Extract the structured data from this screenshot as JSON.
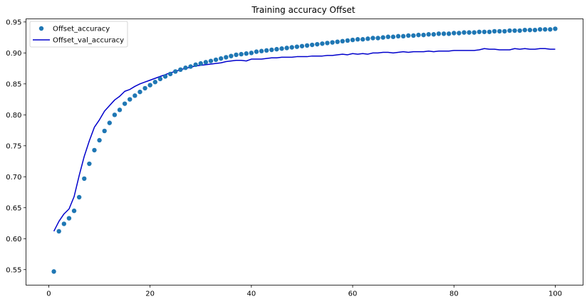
{
  "chart_data": {
    "type": "line",
    "title": "Training accuracy Offset",
    "xlabel": "",
    "ylabel": "",
    "xlim": [
      -4.5,
      105.5
    ],
    "ylim": [
      0.525,
      0.955
    ],
    "x_ticks": [
      0,
      20,
      40,
      60,
      80,
      100
    ],
    "x_tick_labels": [
      "0",
      "20",
      "40",
      "60",
      "80",
      "100"
    ],
    "y_ticks": [
      0.55,
      0.6,
      0.65,
      0.7,
      0.75,
      0.8,
      0.85,
      0.9,
      0.95
    ],
    "y_tick_labels": [
      "0.55",
      "0.60",
      "0.65",
      "0.70",
      "0.75",
      "0.80",
      "0.85",
      "0.90",
      "0.95"
    ],
    "grid": false,
    "legend_position": "top-left",
    "x": [
      1,
      2,
      3,
      4,
      5,
      6,
      7,
      8,
      9,
      10,
      11,
      12,
      13,
      14,
      15,
      16,
      17,
      18,
      19,
      20,
      21,
      22,
      23,
      24,
      25,
      26,
      27,
      28,
      29,
      30,
      31,
      32,
      33,
      34,
      35,
      36,
      37,
      38,
      39,
      40,
      41,
      42,
      43,
      44,
      45,
      46,
      47,
      48,
      49,
      50,
      51,
      52,
      53,
      54,
      55,
      56,
      57,
      58,
      59,
      60,
      61,
      62,
      63,
      64,
      65,
      66,
      67,
      68,
      69,
      70,
      71,
      72,
      73,
      74,
      75,
      76,
      77,
      78,
      79,
      80,
      81,
      82,
      83,
      84,
      85,
      86,
      87,
      88,
      89,
      90,
      91,
      92,
      93,
      94,
      95,
      96,
      97,
      98,
      99,
      100
    ],
    "series": [
      {
        "name": "Offset_accuracy",
        "style": "markers",
        "color": "#1f77b4",
        "values": [
          0.547,
          0.612,
          0.624,
          0.633,
          0.645,
          0.667,
          0.697,
          0.721,
          0.743,
          0.759,
          0.774,
          0.787,
          0.8,
          0.808,
          0.818,
          0.825,
          0.831,
          0.837,
          0.843,
          0.848,
          0.853,
          0.858,
          0.862,
          0.866,
          0.87,
          0.873,
          0.876,
          0.878,
          0.881,
          0.883,
          0.885,
          0.887,
          0.889,
          0.891,
          0.893,
          0.895,
          0.897,
          0.898,
          0.899,
          0.9,
          0.902,
          0.903,
          0.904,
          0.905,
          0.906,
          0.907,
          0.908,
          0.909,
          0.91,
          0.911,
          0.912,
          0.913,
          0.914,
          0.915,
          0.916,
          0.917,
          0.918,
          0.919,
          0.92,
          0.921,
          0.922,
          0.922,
          0.923,
          0.924,
          0.924,
          0.925,
          0.926,
          0.926,
          0.927,
          0.927,
          0.928,
          0.928,
          0.929,
          0.929,
          0.93,
          0.93,
          0.931,
          0.931,
          0.931,
          0.932,
          0.932,
          0.933,
          0.933,
          0.933,
          0.934,
          0.934,
          0.934,
          0.935,
          0.935,
          0.935,
          0.936,
          0.936,
          0.936,
          0.937,
          0.937,
          0.937,
          0.938,
          0.938,
          0.938,
          0.939
        ]
      },
      {
        "name": "Offset_val_accuracy",
        "style": "line",
        "color": "#0000cc",
        "values": [
          0.612,
          0.628,
          0.64,
          0.648,
          0.668,
          0.702,
          0.733,
          0.758,
          0.78,
          0.792,
          0.806,
          0.815,
          0.824,
          0.83,
          0.838,
          0.841,
          0.846,
          0.85,
          0.853,
          0.856,
          0.859,
          0.862,
          0.865,
          0.868,
          0.87,
          0.873,
          0.875,
          0.877,
          0.879,
          0.88,
          0.881,
          0.882,
          0.883,
          0.884,
          0.886,
          0.887,
          0.888,
          0.888,
          0.887,
          0.89,
          0.89,
          0.89,
          0.891,
          0.892,
          0.892,
          0.893,
          0.893,
          0.893,
          0.894,
          0.894,
          0.894,
          0.895,
          0.895,
          0.895,
          0.896,
          0.896,
          0.897,
          0.898,
          0.897,
          0.899,
          0.898,
          0.899,
          0.898,
          0.9,
          0.9,
          0.901,
          0.901,
          0.9,
          0.901,
          0.902,
          0.901,
          0.902,
          0.902,
          0.902,
          0.903,
          0.902,
          0.903,
          0.903,
          0.903,
          0.904,
          0.904,
          0.904,
          0.904,
          0.904,
          0.905,
          0.907,
          0.906,
          0.906,
          0.905,
          0.905,
          0.905,
          0.907,
          0.906,
          0.907,
          0.906,
          0.906,
          0.907,
          0.907,
          0.906,
          0.906
        ]
      }
    ]
  }
}
